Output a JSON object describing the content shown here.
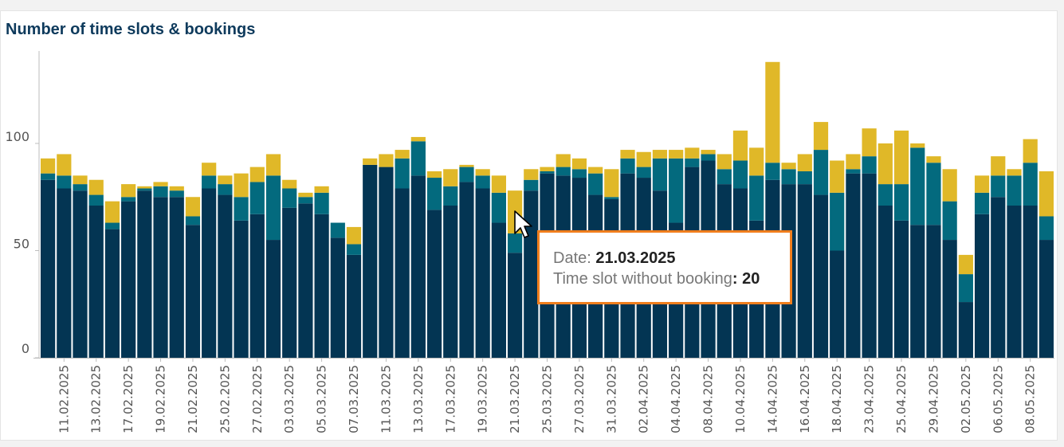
{
  "chart_title": "Number of time slots & bookings",
  "colors": {
    "dark": "#033553",
    "teal": "#036a7e",
    "yellow": "#e0b828",
    "axis": "#bdbdbd"
  },
  "tooltip": {
    "date_label": "Date",
    "date_value": "21.03.2025",
    "metric_label": "Time slot without booking",
    "metric_value": "20"
  },
  "chart_data": {
    "type": "bar",
    "stacked": true,
    "title": "Number of time slots & bookings",
    "ylim": [
      0,
      140
    ],
    "yticks": [
      0,
      50,
      100
    ],
    "grid": false,
    "categories": [
      "10.02.2025",
      "11.02.2025",
      "12.02.2025",
      "13.02.2025",
      "14.02.2025",
      "17.02.2025",
      "18.02.2025",
      "19.02.2025",
      "20.02.2025",
      "21.02.2025",
      "24.02.2025",
      "25.02.2025",
      "26.02.2025",
      "27.02.2025",
      "28.02.2025",
      "03.03.2025",
      "04.03.2025",
      "05.03.2025",
      "06.03.2025",
      "07.03.2025",
      "10.03.2025",
      "11.03.2025",
      "12.03.2025",
      "13.03.2025",
      "14.03.2025",
      "17.03.2025",
      "18.03.2025",
      "19.03.2025",
      "20.03.2025",
      "21.03.2025",
      "24.03.2025",
      "25.03.2025",
      "26.03.2025",
      "27.03.2025",
      "28.03.2025",
      "31.03.2025",
      "01.04.2025",
      "02.04.2025",
      "03.04.2025",
      "04.04.2025",
      "07.04.2025",
      "08.04.2025",
      "09.04.2025",
      "10.04.2025",
      "11.04.2025",
      "14.04.2025",
      "15.04.2025",
      "16.04.2025",
      "17.04.2025",
      "18.04.2025",
      "22.04.2025",
      "23.04.2025",
      "24.04.2025",
      "25.04.2025",
      "28.04.2025",
      "29.04.2025",
      "30.04.2025",
      "02.05.2025",
      "05.05.2025",
      "06.05.2025",
      "07.05.2025",
      "08.05.2025",
      "09.05.2025"
    ],
    "x_tick_labels": [
      "11.02.2025",
      "13.02.2025",
      "17.02.2025",
      "19.02.2025",
      "21.02.2025",
      "25.02.2025",
      "27.02.2025",
      "03.03.2025",
      "05.03.2025",
      "07.03.2025",
      "11.03.2025",
      "13.03.2025",
      "17.03.2025",
      "19.03.2025",
      "21.03.2025",
      "25.03.2025",
      "27.03.2025",
      "31.03.2025",
      "02.04.2025",
      "04.04.2025",
      "08.04.2025",
      "10.04.2025",
      "14.04.2025",
      "16.04.2025",
      "18.04.2025",
      "23.04.2025",
      "25.04.2025",
      "29.04.2025",
      "02.05.2025",
      "06.05.2025",
      "08.05.2025"
    ],
    "series": [
      {
        "values": [
          83,
          79,
          78,
          71,
          60,
          73,
          78,
          75,
          75,
          62,
          79,
          76,
          64,
          67,
          55,
          70,
          72,
          67,
          56,
          48,
          90,
          89,
          79,
          85,
          69,
          71,
          82,
          79,
          63,
          49,
          78,
          86,
          85,
          84,
          76,
          74,
          86,
          84,
          78,
          63,
          89,
          92,
          81,
          79,
          64,
          83,
          81,
          81,
          76,
          50,
          86,
          86,
          71,
          64,
          62,
          62,
          55,
          26,
          67,
          75,
          71,
          71,
          55
        ]
      },
      {
        "values": [
          3,
          6,
          3,
          5,
          3,
          2,
          1,
          5,
          3,
          4,
          6,
          5,
          11,
          15,
          30,
          9,
          3,
          10,
          7,
          5,
          0,
          0,
          14,
          16,
          15,
          9,
          7,
          6,
          14,
          9,
          5,
          1,
          4,
          4,
          10,
          1,
          7,
          5,
          15,
          30,
          4,
          3,
          7,
          13,
          21,
          8,
          7,
          6,
          21,
          27,
          2,
          8,
          10,
          17,
          36,
          29,
          18,
          13,
          10,
          10,
          14,
          20,
          11
        ]
      },
      {
        "values": [
          7,
          10,
          4,
          7,
          10,
          6,
          1,
          2,
          2,
          9,
          6,
          4,
          11,
          7,
          10,
          4,
          2,
          3,
          0,
          8,
          3,
          6,
          4,
          2,
          3,
          8,
          1,
          3,
          8,
          20,
          5,
          2,
          6,
          5,
          3,
          13,
          4,
          7,
          4,
          4,
          5,
          2,
          7,
          14,
          13,
          47,
          3,
          8,
          13,
          15,
          7,
          13,
          19,
          25,
          2,
          3,
          15,
          9,
          8,
          9,
          3,
          11,
          21
        ]
      }
    ]
  }
}
